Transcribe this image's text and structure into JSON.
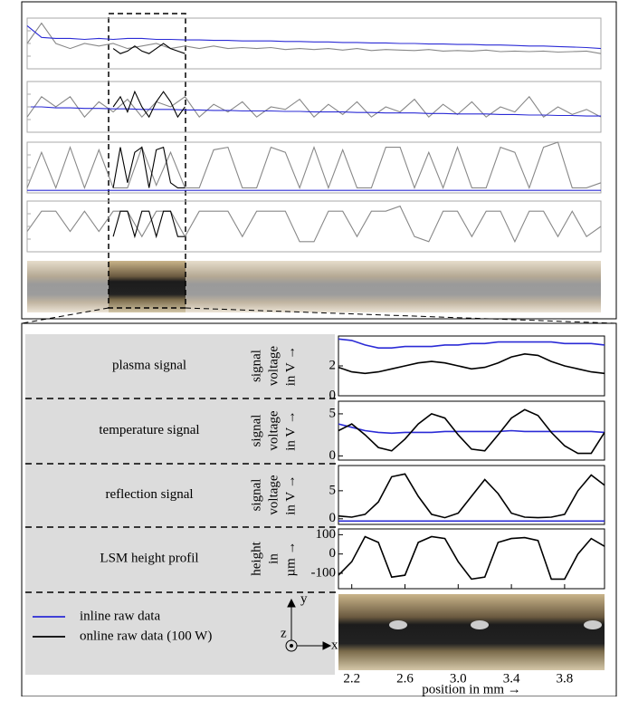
{
  "chart_data": [
    {
      "type": "line",
      "ylim": [
        0,
        1
      ],
      "series": [
        {
          "color": "#888888",
          "values": [
            0.5,
            0.9,
            0.5,
            0.4,
            0.5,
            0.45,
            0.5,
            0.4,
            0.45,
            0.5,
            0.4,
            0.45,
            0.4,
            0.45,
            0.4,
            0.42,
            0.4,
            0.42,
            0.38,
            0.4,
            0.38,
            0.4,
            0.37,
            0.4,
            0.36,
            0.38,
            0.37,
            0.36,
            0.38,
            0.35,
            0.36,
            0.35,
            0.37,
            0.34,
            0.35,
            0.34,
            0.35,
            0.33,
            0.34,
            0.35,
            0.3
          ]
        },
        {
          "color": "#2b2bd6",
          "values": [
            0.85,
            0.62,
            0.6,
            0.6,
            0.58,
            0.6,
            0.58,
            0.6,
            0.6,
            0.58,
            0.58,
            0.57,
            0.57,
            0.56,
            0.56,
            0.55,
            0.55,
            0.55,
            0.54,
            0.54,
            0.53,
            0.53,
            0.52,
            0.52,
            0.51,
            0.51,
            0.5,
            0.5,
            0.49,
            0.49,
            0.48,
            0.48,
            0.47,
            0.47,
            0.46,
            0.45,
            0.45,
            0.44,
            0.43,
            0.42,
            0.4
          ]
        },
        {
          "color": "#000000",
          "x": [
            6,
            6.5,
            7,
            7.5,
            8,
            8.5,
            9,
            9.5,
            10,
            10.5,
            11
          ],
          "values": [
            0.4,
            0.3,
            0.35,
            0.45,
            0.35,
            0.3,
            0.4,
            0.5,
            0.4,
            0.35,
            0.3
          ]
        }
      ]
    },
    {
      "type": "line",
      "ylim": [
        0,
        1
      ],
      "series": [
        {
          "color": "#888888",
          "values": [
            0.3,
            0.7,
            0.5,
            0.7,
            0.3,
            0.6,
            0.4,
            0.65,
            0.3,
            0.6,
            0.5,
            0.7,
            0.3,
            0.55,
            0.4,
            0.6,
            0.3,
            0.5,
            0.45,
            0.65,
            0.3,
            0.55,
            0.35,
            0.6,
            0.3,
            0.5,
            0.4,
            0.65,
            0.3,
            0.55,
            0.35,
            0.6,
            0.3,
            0.5,
            0.4,
            0.7,
            0.3,
            0.5,
            0.35,
            0.45,
            0.3
          ]
        },
        {
          "color": "#2b2bd6",
          "values": [
            0.5,
            0.5,
            0.48,
            0.48,
            0.47,
            0.47,
            0.46,
            0.46,
            0.45,
            0.45,
            0.45,
            0.44,
            0.44,
            0.43,
            0.43,
            0.42,
            0.42,
            0.42,
            0.41,
            0.41,
            0.4,
            0.4,
            0.4,
            0.39,
            0.39,
            0.38,
            0.38,
            0.38,
            0.37,
            0.37,
            0.36,
            0.36,
            0.36,
            0.35,
            0.35,
            0.34,
            0.34,
            0.33,
            0.33,
            0.32,
            0.32
          ]
        },
        {
          "color": "#000000",
          "x": [
            6,
            6.5,
            7,
            7.5,
            8,
            8.5,
            9,
            9.5,
            10,
            10.5,
            11
          ],
          "values": [
            0.5,
            0.7,
            0.4,
            0.8,
            0.5,
            0.3,
            0.6,
            0.8,
            0.6,
            0.3,
            0.5
          ]
        }
      ]
    },
    {
      "type": "line",
      "ylim": [
        0,
        1
      ],
      "series": [
        {
          "color": "#888888",
          "values": [
            0.1,
            0.8,
            0.1,
            0.9,
            0.1,
            0.85,
            0.1,
            0.1,
            0.9,
            0.15,
            0.8,
            0.1,
            0.1,
            0.85,
            0.9,
            0.1,
            0.1,
            0.9,
            0.8,
            0.1,
            0.9,
            0.1,
            0.85,
            0.1,
            0.1,
            0.9,
            0.9,
            0.1,
            0.8,
            0.1,
            0.9,
            0.1,
            0.1,
            0.9,
            0.8,
            0.1,
            0.9,
            1.0,
            0.1,
            0.1,
            0.2
          ]
        },
        {
          "color": "#2b2bd6",
          "values": [
            0.05,
            0.05,
            0.05,
            0.05,
            0.05,
            0.05,
            0.05,
            0.05,
            0.05,
            0.05,
            0.05,
            0.05,
            0.05,
            0.05,
            0.05,
            0.05,
            0.05,
            0.05,
            0.05,
            0.05,
            0.05,
            0.05,
            0.05,
            0.05,
            0.05,
            0.05,
            0.05,
            0.05,
            0.05,
            0.05,
            0.05,
            0.05,
            0.05,
            0.05,
            0.05,
            0.05,
            0.05,
            0.05,
            0.05,
            0.05,
            0.05
          ]
        },
        {
          "color": "#000000",
          "x": [
            6,
            6.5,
            7,
            7.5,
            8,
            8.5,
            9,
            9.5,
            10,
            10.5,
            11
          ],
          "values": [
            0.1,
            0.9,
            0.2,
            0.8,
            0.9,
            0.1,
            0.85,
            0.9,
            0.2,
            0.1,
            0.1
          ]
        }
      ]
    },
    {
      "type": "line",
      "ylim": [
        0,
        1
      ],
      "series": [
        {
          "color": "#888888",
          "values": [
            0.4,
            0.8,
            0.8,
            0.4,
            0.8,
            0.4,
            0.8,
            0.8,
            0.3,
            0.8,
            0.8,
            0.3,
            0.8,
            0.8,
            0.8,
            0.3,
            0.8,
            0.8,
            0.8,
            0.2,
            0.2,
            0.8,
            0.8,
            0.3,
            0.8,
            0.8,
            0.9,
            0.3,
            0.2,
            0.8,
            0.8,
            0.3,
            0.8,
            0.8,
            0.2,
            0.8,
            0.8,
            0.3,
            0.8,
            0.3,
            0.5
          ]
        },
        {
          "color": "#000000",
          "x": [
            6,
            6.5,
            7,
            7.5,
            8,
            8.5,
            9,
            9.5,
            10,
            10.5,
            11
          ],
          "values": [
            0.3,
            0.8,
            0.8,
            0.3,
            0.8,
            0.8,
            0.3,
            0.8,
            0.8,
            0.3,
            0.3
          ]
        }
      ]
    },
    {
      "type": "line",
      "title": "plasma signal",
      "ylabel": [
        "signal",
        "voltage",
        "in V →"
      ],
      "xlim": [
        2.1,
        4.1
      ],
      "ylim": [
        0,
        4
      ],
      "yticks": [
        0,
        2
      ],
      "x": [
        2.1,
        2.2,
        2.3,
        2.4,
        2.5,
        2.6,
        2.7,
        2.8,
        2.9,
        3.0,
        3.1,
        3.2,
        3.3,
        3.4,
        3.5,
        3.6,
        3.7,
        3.8,
        3.9,
        4.0,
        4.1
      ],
      "series": [
        {
          "name": "inline raw data",
          "color": "#2b2bd6",
          "values": [
            3.8,
            3.7,
            3.4,
            3.2,
            3.2,
            3.3,
            3.3,
            3.3,
            3.4,
            3.4,
            3.5,
            3.5,
            3.6,
            3.6,
            3.6,
            3.6,
            3.6,
            3.5,
            3.5,
            3.5,
            3.4
          ]
        },
        {
          "name": "online raw data (100 W)",
          "color": "#000000",
          "values": [
            1.9,
            1.6,
            1.5,
            1.6,
            1.8,
            2.0,
            2.2,
            2.3,
            2.2,
            2.0,
            1.8,
            1.9,
            2.2,
            2.6,
            2.8,
            2.7,
            2.3,
            2.0,
            1.8,
            1.6,
            1.5
          ]
        }
      ]
    },
    {
      "type": "line",
      "title": "temperature signal",
      "ylabel": [
        "signal",
        "voltage",
        "in V →"
      ],
      "xlim": [
        2.1,
        4.1
      ],
      "ylim": [
        -0.5,
        6.5
      ],
      "yticks": [
        0,
        5
      ],
      "x": [
        2.1,
        2.2,
        2.3,
        2.4,
        2.5,
        2.6,
        2.7,
        2.8,
        2.9,
        3.0,
        3.1,
        3.2,
        3.3,
        3.4,
        3.5,
        3.6,
        3.7,
        3.8,
        3.9,
        4.0,
        4.1
      ],
      "series": [
        {
          "color": "#2b2bd6",
          "values": [
            3.8,
            3.4,
            3.0,
            2.8,
            2.7,
            2.8,
            2.8,
            2.8,
            2.9,
            2.9,
            2.9,
            2.9,
            2.9,
            3.0,
            2.9,
            2.9,
            2.9,
            2.9,
            2.9,
            2.9,
            2.8
          ]
        },
        {
          "color": "#000000",
          "values": [
            3.0,
            3.8,
            2.5,
            1.0,
            0.6,
            2.0,
            3.8,
            5.0,
            4.5,
            2.5,
            0.8,
            0.6,
            2.5,
            4.5,
            5.5,
            4.8,
            2.8,
            1.2,
            0.3,
            0.3,
            2.8
          ]
        }
      ]
    },
    {
      "type": "line",
      "title": "reflection signal",
      "ylabel": [
        "signal",
        "voltage",
        "in V →"
      ],
      "xlim": [
        2.1,
        4.1
      ],
      "ylim": [
        -1,
        9.5
      ],
      "yticks": [
        0,
        5
      ],
      "x": [
        2.1,
        2.2,
        2.3,
        2.4,
        2.5,
        2.6,
        2.7,
        2.8,
        2.9,
        3.0,
        3.1,
        3.2,
        3.3,
        3.4,
        3.5,
        3.6,
        3.7,
        3.8,
        3.9,
        4.0,
        4.1
      ],
      "series": [
        {
          "color": "#2b2bd6",
          "values": [
            -0.4,
            -0.4,
            -0.4,
            -0.4,
            -0.4,
            -0.4,
            -0.4,
            -0.4,
            -0.4,
            -0.4,
            -0.4,
            -0.4,
            -0.4,
            -0.4,
            -0.4,
            -0.4,
            -0.4,
            -0.4,
            -0.4,
            -0.4,
            -0.4
          ]
        },
        {
          "color": "#000000",
          "values": [
            0.5,
            0.3,
            0.8,
            3,
            7.5,
            8,
            4,
            0.8,
            0.2,
            1,
            4,
            7,
            4.5,
            1,
            0.3,
            0.2,
            0.3,
            0.8,
            5,
            7.8,
            6
          ]
        }
      ]
    },
    {
      "type": "line",
      "title": "LSM height profil",
      "ylabel": [
        "height",
        "in",
        "µm →"
      ],
      "xlim": [
        2.1,
        4.1
      ],
      "ylim": [
        -180,
        130
      ],
      "yticks": [
        -100,
        0,
        100
      ],
      "x": [
        2.1,
        2.2,
        2.3,
        2.4,
        2.5,
        2.6,
        2.7,
        2.8,
        2.9,
        3.0,
        3.1,
        3.2,
        3.3,
        3.4,
        3.5,
        3.6,
        3.7,
        3.8,
        3.9,
        4.0,
        4.1
      ],
      "xticks": [
        2.2,
        2.6,
        {
          "value": 3.0,
          "label": "3.0"
        },
        3.4,
        3.8
      ],
      "xlabel": "position in mm →",
      "series": [
        {
          "color": "#000000",
          "values": [
            -110,
            -40,
            90,
            60,
            -120,
            -110,
            60,
            90,
            80,
            -40,
            -130,
            -120,
            60,
            80,
            85,
            70,
            -130,
            -130,
            0,
            80,
            40
          ]
        }
      ]
    }
  ],
  "coordinate_axes": {
    "x": "x",
    "y": "y",
    "z": "z"
  }
}
